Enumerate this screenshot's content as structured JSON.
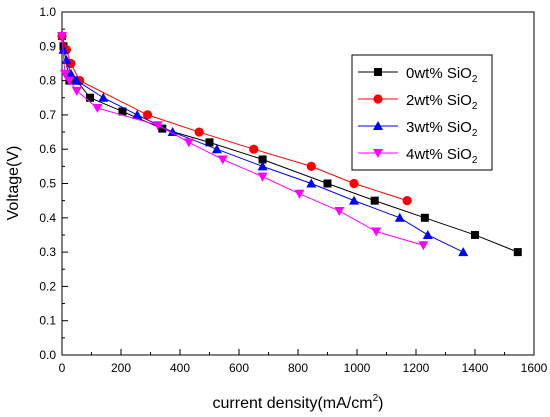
{
  "chart_data": {
    "type": "line",
    "title": "",
    "xlabel": "current density(mA/cm",
    "xlabel_sup": "2",
    "xlabel_suffix": ")",
    "ylabel": "Voltage(V)",
    "xlim": [
      0,
      1600
    ],
    "ylim": [
      0.0,
      1.0
    ],
    "xticks": [
      0,
      200,
      400,
      600,
      800,
      1000,
      1200,
      1400,
      1600
    ],
    "yticks": [
      0.0,
      0.1,
      0.2,
      0.3,
      0.4,
      0.5,
      0.6,
      0.7,
      0.8,
      0.9,
      1.0
    ],
    "xtick_labels": [
      "0",
      "200",
      "400",
      "600",
      "800",
      "1000",
      "1200",
      "1400",
      "1600"
    ],
    "ytick_labels": [
      "0.0",
      "0.1",
      "0.2",
      "0.3",
      "0.4",
      "0.5",
      "0.6",
      "0.7",
      "0.8",
      "0.9",
      "1.0"
    ],
    "grid": false,
    "legend_position": "top-right",
    "series": [
      {
        "name": "0wt% SiO",
        "name_sub": "2",
        "color": "#000000",
        "marker": "square",
        "x": [
          0,
          5,
          25,
          50,
          95,
          205,
          340,
          500,
          680,
          900,
          1060,
          1230,
          1400,
          1545
        ],
        "y": [
          0.93,
          0.9,
          0.8,
          0.8,
          0.75,
          0.71,
          0.66,
          0.62,
          0.57,
          0.5,
          0.45,
          0.4,
          0.35,
          0.3
        ]
      },
      {
        "name": "2wt% SiO",
        "name_sub": "2",
        "color": "#ff0000",
        "marker": "circle",
        "x": [
          0,
          15,
          30,
          60,
          290,
          465,
          650,
          845,
          990,
          1170
        ],
        "y": [
          0.93,
          0.89,
          0.85,
          0.8,
          0.7,
          0.65,
          0.6,
          0.55,
          0.5,
          0.45
        ]
      },
      {
        "name": "3wt% SiO",
        "name_sub": "2",
        "color": "#0000ff",
        "marker": "triangle-up",
        "x": [
          5,
          15,
          30,
          50,
          140,
          255,
          375,
          525,
          680,
          845,
          990,
          1145,
          1240,
          1360
        ],
        "y": [
          0.89,
          0.86,
          0.82,
          0.8,
          0.75,
          0.7,
          0.65,
          0.6,
          0.55,
          0.5,
          0.45,
          0.4,
          0.35,
          0.3
        ]
      },
      {
        "name": "4wt% SiO",
        "name_sub": "2",
        "color": "#ff00ff",
        "marker": "triangle-down",
        "x": [
          0,
          10,
          25,
          50,
          120,
          325,
          430,
          545,
          680,
          805,
          940,
          1065,
          1225
        ],
        "y": [
          0.93,
          0.82,
          0.8,
          0.77,
          0.72,
          0.67,
          0.62,
          0.57,
          0.52,
          0.47,
          0.42,
          0.36,
          0.32
        ]
      }
    ]
  }
}
